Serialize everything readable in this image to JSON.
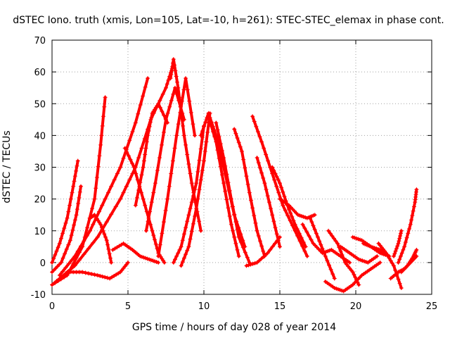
{
  "chart_data": {
    "type": "line",
    "title": "dSTEC Iono. truth (xmis, Lon=105, Lat=-10, h=261): STEC-STEC_elemax in phase cont.",
    "xlabel": "GPS time / hours of day 028 of year 2014",
    "ylabel": "dSTEC  / TECUs",
    "xlim": [
      0,
      25
    ],
    "ylim": [
      -10,
      70
    ],
    "xticks": [
      0,
      5,
      10,
      15,
      20,
      25
    ],
    "yticks": [
      -10,
      0,
      10,
      20,
      30,
      40,
      50,
      60,
      70
    ],
    "grid": true,
    "legend": "none",
    "series_color": "#ff0000",
    "marker": "plus",
    "series": [
      {
        "x": [
          0.0,
          0.5,
          1.0,
          1.4,
          1.7
        ],
        "y": [
          0,
          6,
          14,
          24,
          32
        ]
      },
      {
        "x": [
          0.0,
          0.6,
          1.2,
          1.6,
          1.9
        ],
        "y": [
          -3,
          0,
          7,
          15,
          24
        ]
      },
      {
        "x": [
          0.0,
          1.0,
          2.0,
          2.8,
          3.2,
          3.5
        ],
        "y": [
          -7,
          -4,
          5,
          20,
          37,
          52
        ]
      },
      {
        "x": [
          0.0,
          1.5,
          3.0,
          4.5,
          5.5,
          6.5,
          7.5,
          7.9
        ],
        "y": [
          -7,
          -1,
          8,
          20,
          30,
          45,
          55,
          61
        ]
      },
      {
        "x": [
          0.5,
          1.5,
          2.5,
          3.5,
          4.5,
          5.5,
          6.3
        ],
        "y": [
          -4,
          2,
          10,
          20,
          30,
          44,
          58
        ]
      },
      {
        "x": [
          1.0,
          2.0,
          3.0,
          3.8,
          4.5,
          5.0
        ],
        "y": [
          -3,
          -3,
          -4,
          -5,
          -3,
          0
        ]
      },
      {
        "x": [
          2.5,
          2.8,
          3.2,
          3.6,
          3.9
        ],
        "y": [
          14,
          15,
          12,
          7,
          0
        ]
      },
      {
        "x": [
          4.0,
          4.7,
          5.3,
          5.8,
          6.4,
          7.0
        ],
        "y": [
          4,
          6,
          4,
          2,
          1,
          0
        ]
      },
      {
        "x": [
          4.8,
          5.4,
          6.0,
          6.6,
          7.0,
          7.4
        ],
        "y": [
          36,
          30,
          20,
          10,
          3,
          0
        ]
      },
      {
        "x": [
          5.5,
          6.0,
          6.3,
          6.6,
          7.0,
          7.6
        ],
        "y": [
          18,
          30,
          40,
          47,
          50,
          44
        ]
      },
      {
        "x": [
          6.2,
          6.8,
          7.5,
          8.1,
          8.7
        ],
        "y": [
          10,
          25,
          45,
          55,
          45
        ]
      },
      {
        "x": [
          7.0,
          7.6,
          8.2,
          8.8,
          9.4
        ],
        "y": [
          2,
          20,
          40,
          58,
          40
        ]
      },
      {
        "x": [
          7.8,
          8.0,
          8.3,
          8.7,
          9.2,
          9.8
        ],
        "y": [
          58,
          64,
          55,
          40,
          25,
          10
        ]
      },
      {
        "x": [
          8.0,
          8.5,
          9.0,
          9.5,
          10.0
        ],
        "y": [
          0,
          5,
          15,
          25,
          43
        ]
      },
      {
        "x": [
          8.5,
          9.0,
          9.5,
          10.0,
          10.4
        ],
        "y": [
          -1,
          5,
          17,
          32,
          47
        ]
      },
      {
        "x": [
          9.8,
          10.3,
          10.8,
          11.4,
          12.0,
          12.7
        ],
        "y": [
          40,
          47,
          40,
          28,
          15,
          5
        ]
      },
      {
        "x": [
          10.3,
          10.8,
          11.3,
          11.8,
          12.3
        ],
        "y": [
          46,
          38,
          25,
          12,
          2
        ]
      },
      {
        "x": [
          10.8,
          11.3,
          11.8,
          12.3,
          13.0
        ],
        "y": [
          44,
          33,
          20,
          8,
          0
        ]
      },
      {
        "x": [
          12.0,
          12.5,
          13.0,
          13.5,
          14.0
        ],
        "y": [
          42,
          35,
          22,
          10,
          2
        ]
      },
      {
        "x": [
          13.2,
          13.8,
          14.5,
          15.2,
          16.0,
          16.8
        ],
        "y": [
          46,
          38,
          28,
          18,
          10,
          2
        ]
      },
      {
        "x": [
          13.5,
          14.0,
          14.5,
          15.0
        ],
        "y": [
          33,
          25,
          15,
          5
        ]
      },
      {
        "x": [
          14.5,
          15.0,
          15.5,
          16.0,
          16.7
        ],
        "y": [
          30,
          25,
          18,
          12,
          5
        ]
      },
      {
        "x": [
          12.8,
          13.5,
          14.2,
          15.0
        ],
        "y": [
          -1,
          0,
          3,
          8
        ]
      },
      {
        "x": [
          15.0,
          15.6,
          16.2,
          16.8,
          17.3
        ],
        "y": [
          20,
          18,
          15,
          14,
          15
        ]
      },
      {
        "x": [
          17.0,
          17.5,
          18.0,
          18.6
        ],
        "y": [
          14,
          8,
          2,
          -5
        ]
      },
      {
        "x": [
          16.5,
          17.2,
          17.8,
          18.4,
          19.0,
          19.6
        ],
        "y": [
          12,
          6,
          3,
          4,
          2,
          0
        ]
      },
      {
        "x": [
          18.2,
          18.8,
          19.3,
          19.8,
          20.2
        ],
        "y": [
          10,
          6,
          0,
          -3,
          -7
        ]
      },
      {
        "x": [
          18.0,
          18.6,
          19.2,
          19.8,
          20.4,
          21.0,
          21.6
        ],
        "y": [
          -6,
          -8,
          -9,
          -7,
          -4,
          -2,
          0
        ]
      },
      {
        "x": [
          19.0,
          19.6,
          20.2,
          20.8,
          21.4
        ],
        "y": [
          5,
          3,
          1,
          0,
          2
        ]
      },
      {
        "x": [
          19.8,
          20.4,
          21.0,
          21.6,
          22.2
        ],
        "y": [
          8,
          7,
          5,
          3,
          2
        ]
      },
      {
        "x": [
          20.5,
          21.0,
          21.6,
          22.2
        ],
        "y": [
          6,
          5,
          4,
          2
        ]
      },
      {
        "x": [
          21.5,
          22.0,
          22.5,
          23.0
        ],
        "y": [
          6,
          3,
          -1,
          -8
        ]
      },
      {
        "x": [
          22.3,
          22.8,
          23.2,
          23.6,
          24.0
        ],
        "y": [
          -5,
          -3,
          -2,
          0,
          2
        ]
      },
      {
        "x": [
          23.0,
          23.4,
          23.8,
          24.0
        ],
        "y": [
          -3,
          -1,
          2,
          4
        ]
      },
      {
        "x": [
          22.8,
          23.2,
          23.6,
          23.9,
          24.0
        ],
        "y": [
          0,
          5,
          12,
          19,
          23
        ]
      },
      {
        "x": [
          22.5,
          22.8,
          23.0
        ],
        "y": [
          2,
          6,
          10
        ]
      }
    ]
  }
}
